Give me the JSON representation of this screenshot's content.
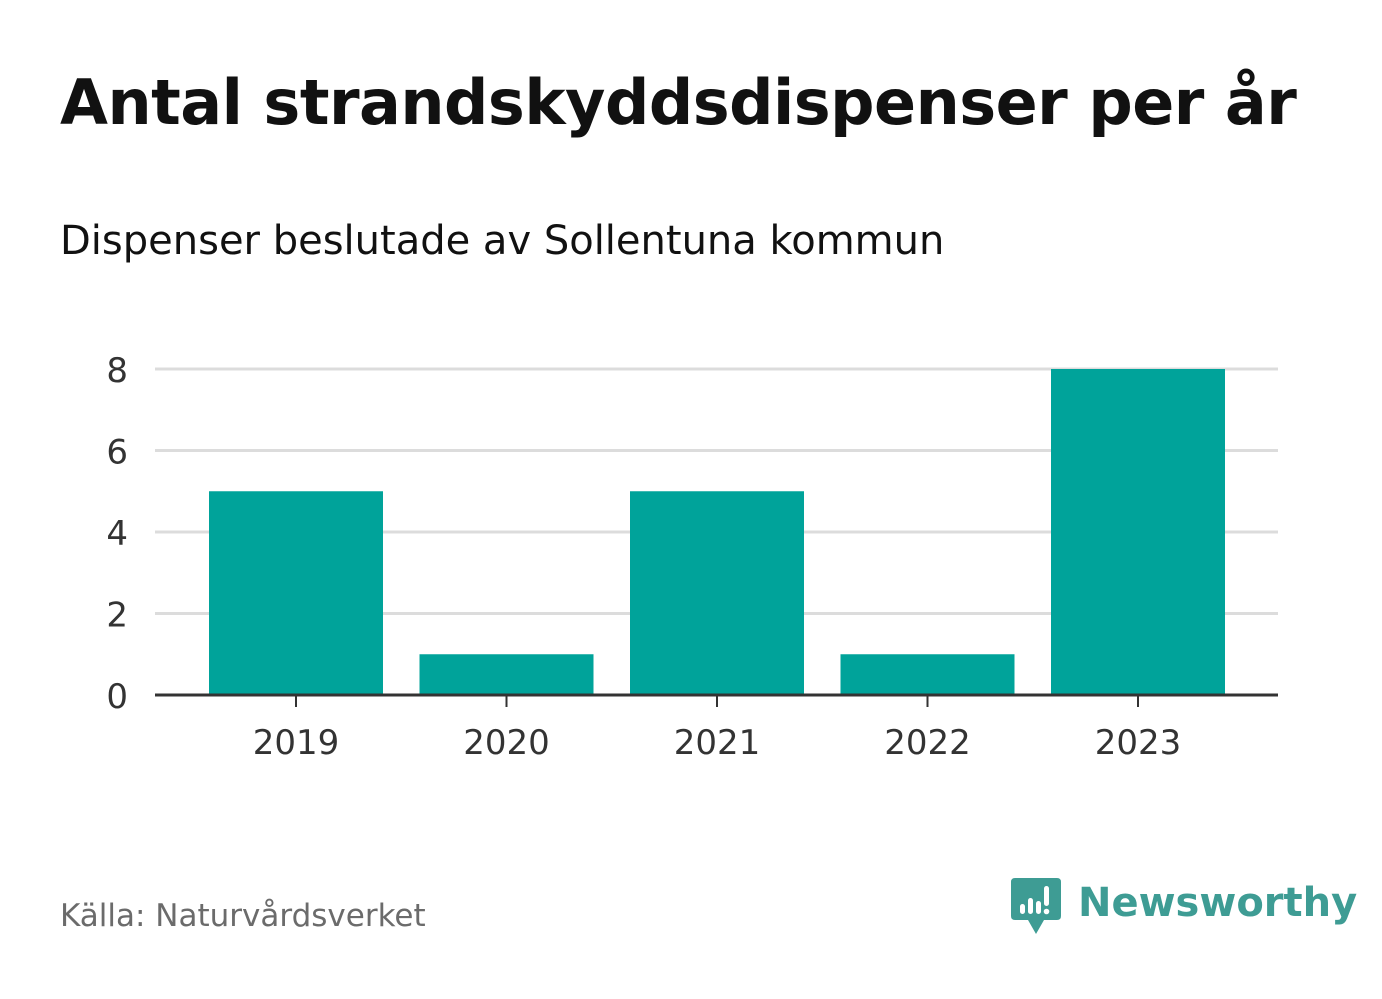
{
  "chart_data": {
    "type": "bar",
    "title": "Antal strandskyddsdispenser per år",
    "subtitle": "Dispenser beslutade av Sollentuna kommun",
    "categories": [
      "2019",
      "2020",
      "2021",
      "2022",
      "2023"
    ],
    "values": [
      5,
      1,
      5,
      1,
      8
    ],
    "xlabel": "",
    "ylabel": "",
    "ylim": [
      0,
      8
    ],
    "yticks": [
      0,
      2,
      4,
      6,
      8
    ],
    "grid": true,
    "bar_color": "#00a39a"
  },
  "source": "Källa: Naturvårdsverket",
  "brand": {
    "name": "Newsworthy",
    "icon": "newsworthy-logo-icon",
    "color": "#3e9c94"
  }
}
